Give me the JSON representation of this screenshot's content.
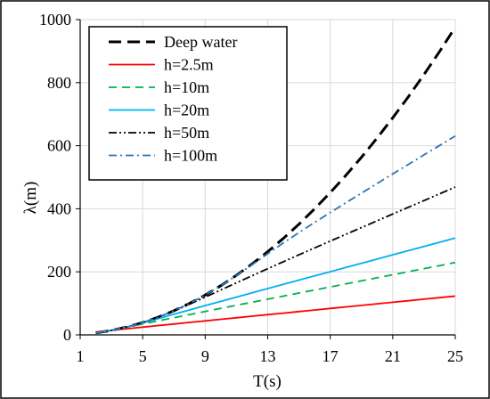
{
  "chart_data": {
    "type": "line",
    "xlabel": "T(s)",
    "ylabel": "λ(m)",
    "xlim": [
      1,
      25
    ],
    "ylim": [
      0,
      1000
    ],
    "xticks": [
      "1",
      "5",
      "9",
      "13",
      "17",
      "21",
      "25"
    ],
    "yticks": [
      "0",
      "200",
      "400",
      "600",
      "800",
      "1000"
    ],
    "x_tick_values": [
      1,
      5,
      9,
      13,
      17,
      21,
      25
    ],
    "y_tick_values": [
      0,
      200,
      400,
      600,
      800,
      1000
    ],
    "grid": true,
    "legend_position": "top-left",
    "x": [
      2,
      3,
      4,
      5,
      6,
      7,
      8,
      9,
      10,
      11,
      12,
      13,
      14,
      15,
      16,
      17,
      18,
      19,
      20,
      21,
      22,
      23,
      24,
      25
    ],
    "series": [
      {
        "name": "Deep water",
        "color": "#000000",
        "dash": "long-dash",
        "values": [
          6.2,
          14.0,
          25.0,
          39.0,
          56.2,
          76.5,
          99.9,
          126.4,
          156.1,
          188.9,
          224.8,
          263.8,
          305.9,
          351.2,
          399.6,
          451.1,
          505.8,
          563.5,
          624.4,
          688.4,
          755.5,
          825.8,
          899.2,
          975.7
        ]
      },
      {
        "name": "h=2.5m",
        "color": "#ff0000",
        "dash": "solid",
        "values": [
          9.0,
          14.4,
          19.5,
          24.6,
          29.6,
          34.6,
          39.5,
          44.4,
          49.4,
          54.3,
          59.2,
          64.1,
          69.0,
          73.9,
          78.9,
          83.8,
          88.7,
          93.6,
          98.5,
          103.4,
          108.3,
          113.2,
          118.1,
          123.0
        ]
      },
      {
        "name": "h=10m",
        "color": "#00b050",
        "dash": "dash",
        "values": [
          6.2,
          14.0,
          24.4,
          34.7,
          44.7,
          54.6,
          64.5,
          74.3,
          84.1,
          93.8,
          103.5,
          113.3,
          123.0,
          132.7,
          142.4,
          152.1,
          161.8,
          171.4,
          181.1,
          190.8,
          200.5,
          210.2,
          219.9,
          229.6
        ]
      },
      {
        "name": "h=20m",
        "color": "#00b0f0",
        "dash": "solid",
        "values": [
          6.2,
          14.0,
          25.0,
          38.0,
          51.7,
          65.4,
          79.1,
          92.8,
          106.3,
          119.8,
          133.3,
          146.8,
          160.2,
          173.6,
          187.0,
          200.4,
          213.8,
          227.2,
          240.5,
          253.9,
          267.2,
          280.6,
          293.9,
          307.2
        ]
      },
      {
        "name": "h=50m",
        "color": "#000000",
        "dash": "dash-dot-dot",
        "values": [
          6.2,
          14.0,
          25.0,
          39.0,
          56.0,
          75.5,
          97.1,
          119.7,
          142.5,
          165.2,
          187.7,
          209.9,
          232.0,
          253.9,
          275.7,
          297.4,
          319.0,
          340.5,
          362.0,
          383.4,
          404.8,
          426.1,
          447.4,
          468.7
        ]
      },
      {
        "name": "h=100m",
        "color": "#2e75b6",
        "dash": "dash-dot",
        "values": [
          6.2,
          14.0,
          25.0,
          39.0,
          56.2,
          76.5,
          99.9,
          126.4,
          155.9,
          188.2,
          222.5,
          257.3,
          291.4,
          324.5,
          356.6,
          388.0,
          419.0,
          449.7,
          480.2,
          510.5,
          540.7,
          570.8,
          600.8,
          630.7
        ]
      }
    ]
  }
}
